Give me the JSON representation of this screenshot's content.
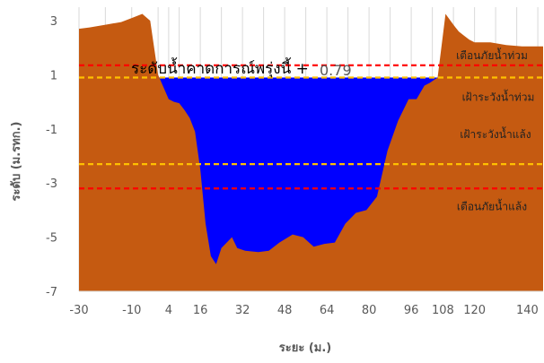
{
  "chart_data": {
    "type": "area",
    "xlabel": "ระยะ (ม.)",
    "ylabel": "ระดับ (ม.รทก.)",
    "xlim": [
      -30,
      146
    ],
    "ylim": [
      -7,
      3.5
    ],
    "x_ticks": [
      -30,
      -20,
      -10,
      0,
      4,
      8,
      16,
      24,
      32,
      40,
      48,
      56,
      64,
      72,
      80,
      88,
      96,
      104,
      112,
      120,
      128,
      136,
      144
    ],
    "x_tick_labels_shown": [
      -30,
      -10,
      4,
      16,
      32,
      48,
      64,
      80,
      96,
      108,
      120,
      140
    ],
    "y_ticks": [
      3,
      1,
      -1,
      -3,
      -5,
      -7
    ],
    "grid": {
      "vertical": true,
      "horizontal": false
    },
    "colors": {
      "ground": "#C55A11",
      "water": "#0000FF",
      "flood_warning": "#FF0000",
      "flood_watch": "#FFC000",
      "tick_text": "#595959"
    },
    "ground_profile": {
      "name": "ground",
      "x": [
        -30,
        -26,
        -20,
        -14,
        -10,
        -6,
        -3,
        0,
        4,
        6,
        8,
        10,
        12,
        14,
        16,
        18,
        20,
        22,
        24,
        28,
        30,
        33,
        38,
        42,
        46,
        51,
        55,
        59,
        63,
        67,
        71,
        75,
        79,
        83,
        87,
        91,
        93,
        95,
        98,
        101,
        103,
        106,
        109,
        112,
        114,
        116,
        118,
        120,
        126,
        132,
        138,
        146
      ],
      "y": [
        2.7,
        2.75,
        2.85,
        2.95,
        3.1,
        3.25,
        3.0,
        1.0,
        0.1,
        0.0,
        -0.05,
        -0.3,
        -0.6,
        -1.1,
        -2.5,
        -4.5,
        -5.7,
        -6.0,
        -5.4,
        -5.0,
        -5.4,
        -5.5,
        -5.55,
        -5.5,
        -5.2,
        -4.9,
        -5.0,
        -5.35,
        -5.25,
        -5.2,
        -4.5,
        -4.1,
        -4.0,
        -3.5,
        -1.8,
        -0.7,
        -0.3,
        0.1,
        0.1,
        0.6,
        0.7,
        0.9,
        3.25,
        2.85,
        2.6,
        2.45,
        2.3,
        2.2,
        2.2,
        2.1,
        2.05,
        2.05
      ]
    },
    "water_level": 0.9,
    "threshold_lines": [
      {
        "name": "เตือนภัยน้ำท่วม",
        "y": 1.35,
        "color": "#FF0000"
      },
      {
        "name": "เฝ้าระวังน้ำท่วม",
        "y": 0.9,
        "color": "#FFC000"
      },
      {
        "name": "เฝ้าระวังน้ำแล้ง",
        "y": -2.3,
        "color": "#FFC000"
      },
      {
        "name": "เตือนภัยน้ำแล้ง",
        "y": -3.2,
        "color": "#FF0000"
      }
    ],
    "annotation": {
      "text": "ระดับน้ำคาดการณ์พรุ่งนี้ +",
      "value": "0.79"
    }
  }
}
